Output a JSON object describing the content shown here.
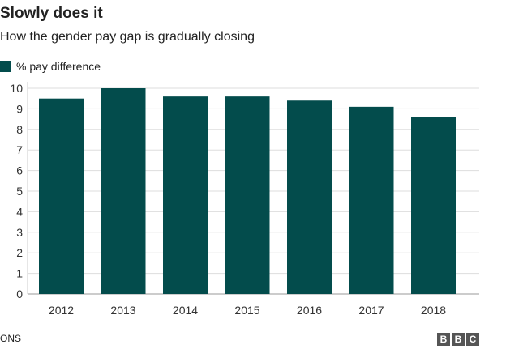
{
  "chart_data": {
    "type": "bar",
    "title": "Slowly does it",
    "subtitle": "How the gender pay gap is gradually closing",
    "categories": [
      "2012",
      "2013",
      "2014",
      "2015",
      "2016",
      "2017",
      "2018"
    ],
    "series": [
      {
        "name": "% pay difference",
        "values": [
          9.5,
          10,
          9.6,
          9.6,
          9.4,
          9.1,
          8.6
        ]
      }
    ],
    "ylim": [
      0,
      10
    ],
    "yticks": [
      0,
      1,
      2,
      3,
      4,
      5,
      6,
      7,
      8,
      9,
      10
    ],
    "grid": true,
    "legend": "top-left",
    "color": "#034c4c"
  },
  "footer": {
    "source": "ONS",
    "logo": "BBC"
  }
}
